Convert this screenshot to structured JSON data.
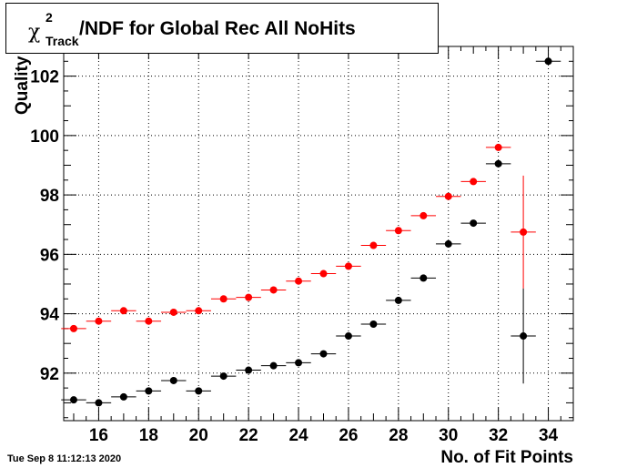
{
  "chart_data": {
    "type": "scatter",
    "title_main": "/NDF for Global Rec All NoHits",
    "title_symbol": "χ",
    "title_sup": "2",
    "title_sub": "Track",
    "xlabel": "No. of Fit Points",
    "ylabel": "Quality",
    "xlim": [
      14.6,
      35.0
    ],
    "ylim": [
      90.4,
      103.0
    ],
    "xticks": [
      16,
      18,
      20,
      22,
      24,
      26,
      28,
      30,
      32,
      34
    ],
    "yticks": [
      92,
      94,
      96,
      98,
      100,
      102
    ],
    "grid": true,
    "series": [
      {
        "color": "#ff0000",
        "points": [
          {
            "x": 15,
            "y": 93.5
          },
          {
            "x": 16,
            "y": 93.75
          },
          {
            "x": 17,
            "y": 94.1
          },
          {
            "x": 18,
            "y": 93.75
          },
          {
            "x": 19,
            "y": 94.05
          },
          {
            "x": 20,
            "y": 94.1
          },
          {
            "x": 21,
            "y": 94.5
          },
          {
            "x": 22,
            "y": 94.55
          },
          {
            "x": 23,
            "y": 94.8
          },
          {
            "x": 24,
            "y": 95.1
          },
          {
            "x": 25,
            "y": 95.35
          },
          {
            "x": 26,
            "y": 95.6
          },
          {
            "x": 27,
            "y": 96.3
          },
          {
            "x": 28,
            "y": 96.8
          },
          {
            "x": 29,
            "y": 97.3
          },
          {
            "x": 30,
            "y": 97.95
          },
          {
            "x": 31,
            "y": 98.45
          },
          {
            "x": 32,
            "y": 99.6
          },
          {
            "x": 33,
            "y": 96.75,
            "yerr": 1.9
          }
        ]
      },
      {
        "color": "#000000",
        "points": [
          {
            "x": 15,
            "y": 91.1
          },
          {
            "x": 16,
            "y": 91.0
          },
          {
            "x": 17,
            "y": 91.2
          },
          {
            "x": 18,
            "y": 91.4
          },
          {
            "x": 19,
            "y": 91.75
          },
          {
            "x": 20,
            "y": 91.4
          },
          {
            "x": 21,
            "y": 91.9
          },
          {
            "x": 22,
            "y": 92.1
          },
          {
            "x": 23,
            "y": 92.25
          },
          {
            "x": 24,
            "y": 92.35
          },
          {
            "x": 25,
            "y": 92.65
          },
          {
            "x": 26,
            "y": 93.25
          },
          {
            "x": 27,
            "y": 93.65
          },
          {
            "x": 28,
            "y": 94.45
          },
          {
            "x": 29,
            "y": 95.2
          },
          {
            "x": 30,
            "y": 96.35
          },
          {
            "x": 31,
            "y": 97.05
          },
          {
            "x": 32,
            "y": 99.05
          },
          {
            "x": 33,
            "y": 93.25,
            "yerr": 1.6
          },
          {
            "x": 34,
            "y": 102.5
          }
        ]
      }
    ]
  },
  "timestamp": "Tue Sep  8 11:12:13 2020"
}
